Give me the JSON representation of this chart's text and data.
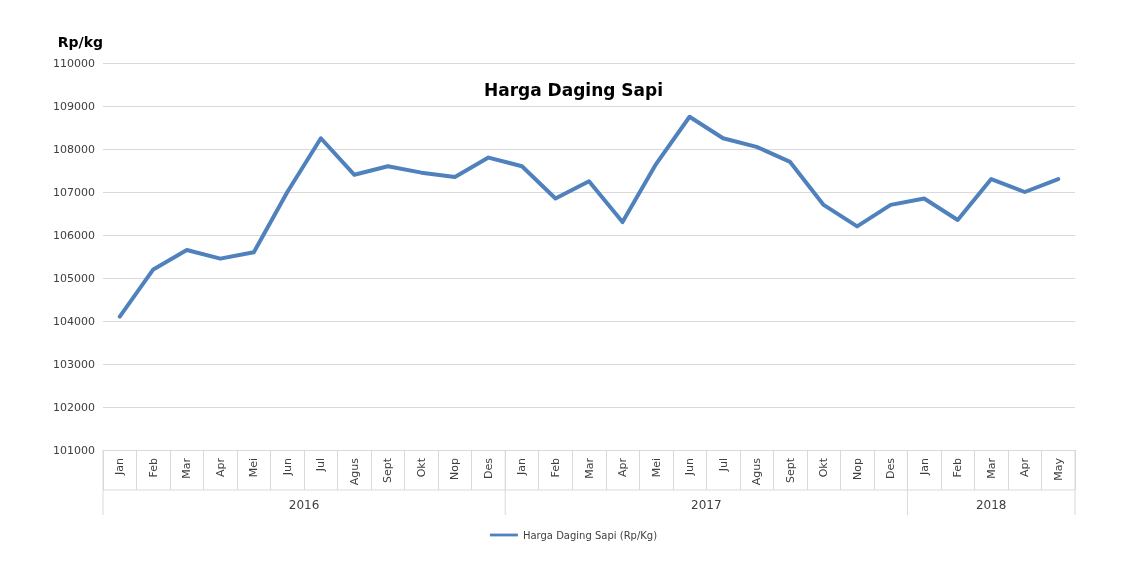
{
  "chart_data": {
    "type": "line",
    "title": "Harga Daging Sapi",
    "ylabel": "Rp/kg",
    "categories": [
      "Jan",
      "Feb",
      "Mar",
      "Apr",
      "Mei",
      "Jun",
      "Jul",
      "Agus",
      "Sept",
      "Okt",
      "Nop",
      "Des",
      "Jan",
      "Feb",
      "Mar",
      "Apr",
      "Mei",
      "Jun",
      "Jul",
      "Agus",
      "Sept",
      "Okt",
      "Nop",
      "Des",
      "Jan",
      "Feb",
      "Mar",
      "Apr",
      "May"
    ],
    "series": [
      {
        "name": "Harga Daging Sapi (Rp/Kg)",
        "color": "#4f81bd",
        "values": [
          104100,
          105200,
          105650,
          105450,
          105600,
          107000,
          108250,
          107400,
          107600,
          107450,
          107350,
          107800,
          107600,
          106850,
          107250,
          106300,
          107650,
          108750,
          108250,
          108050,
          107700,
          106700,
          106200,
          106700,
          106850,
          106350,
          107300,
          107000,
          107300
        ]
      }
    ],
    "annotations": [
      "2016",
      "2017",
      "2018"
    ],
    "ylim": [
      101000,
      110000
    ],
    "yticks": [
      101000,
      102000,
      103000,
      104000,
      105000,
      106000,
      107000,
      108000,
      109000,
      110000
    ],
    "grid": "y",
    "legend": "bottom",
    "marker": "none",
    "line_style": "solid"
  }
}
